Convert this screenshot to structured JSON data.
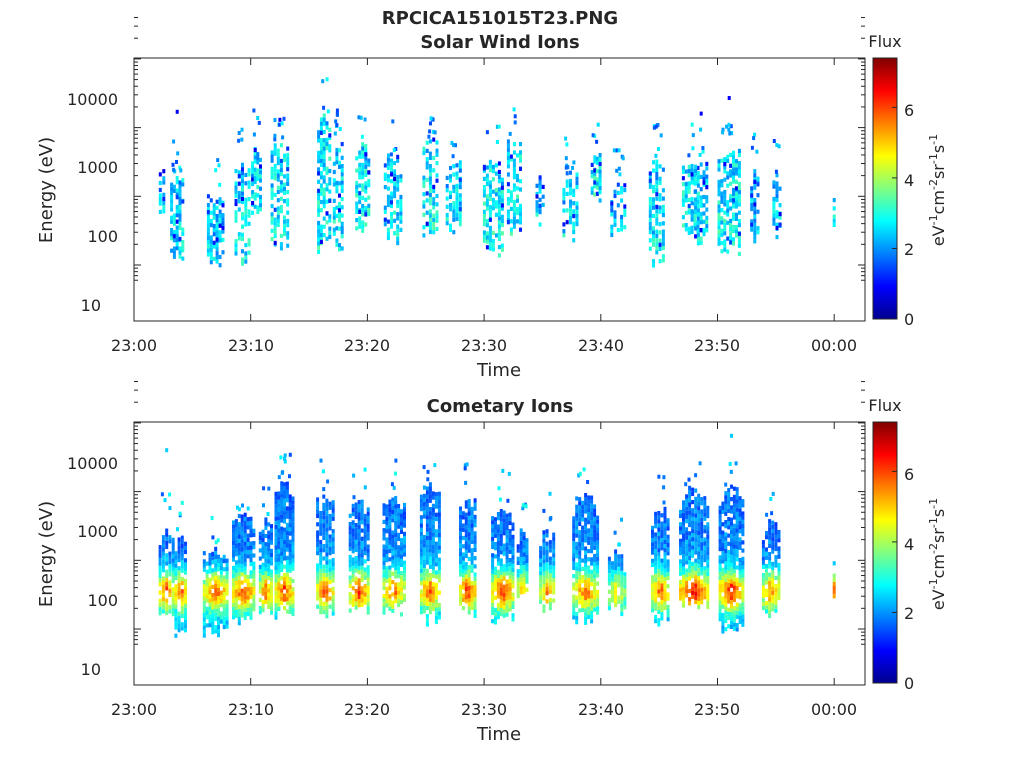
{
  "figure_title": "RPCICA151015T23.PNG",
  "colors": {
    "colormap": [
      "#00008f",
      "#0000ff",
      "#0080ff",
      "#00ffff",
      "#80ff80",
      "#ffff00",
      "#ff8000",
      "#ff0000",
      "#800000"
    ],
    "axis": "#262626",
    "background": "#ffffff"
  },
  "chart_data": [
    {
      "type": "heatmap",
      "title": "Solar Wind Ions",
      "xlabel": "Time",
      "ylabel": "Energy (eV)",
      "xticks": [
        "23:00",
        "23:10",
        "23:20",
        "23:30",
        "23:40",
        "23:50",
        "00:00"
      ],
      "xlim_minutes": [
        0,
        62
      ],
      "yticks": [
        "10",
        "100",
        "1000",
        "10000"
      ],
      "y_scale": "log",
      "ylim": [
        6,
        45000
      ],
      "colorbar": {
        "title": "Flux",
        "label": "eV-1cm-2sr-1s-1",
        "ticks": [
          "0",
          "2",
          "4",
          "6"
        ],
        "range": [
          0,
          7.4
        ]
      },
      "bursts": [
        {
          "t": 2.4,
          "w": 0.6,
          "lo": 60,
          "hi": 280,
          "peak": 2.6,
          "spike": 0,
          "tail": 0
        },
        {
          "t": 3.7,
          "w": 1.2,
          "lo": 14,
          "hi": 200,
          "peak": 2.7,
          "spike": 1700,
          "tail": 2
        },
        {
          "t": 7.0,
          "w": 1.5,
          "lo": 13,
          "hi": 110,
          "peak": 2.6,
          "spike": 0,
          "tail": 1
        },
        {
          "t": 9.3,
          "w": 1.4,
          "lo": 13,
          "hi": 300,
          "peak": 2.8,
          "spike": 0,
          "tail": 1
        },
        {
          "t": 10.5,
          "w": 0.9,
          "lo": 60,
          "hi": 600,
          "peak": 2.8,
          "spike": 0,
          "tail": 1
        },
        {
          "t": 12.5,
          "w": 1.6,
          "lo": 20,
          "hi": 600,
          "peak": 2.9,
          "spike": 1300,
          "tail": 2
        },
        {
          "t": 16.3,
          "w": 1.2,
          "lo": 20,
          "hi": 1700,
          "peak": 2.9,
          "spike": 0,
          "tail": 1
        },
        {
          "t": 17.5,
          "w": 0.9,
          "lo": 20,
          "hi": 600,
          "peak": 2.8,
          "spike": 0,
          "tail": 2
        },
        {
          "t": 19.6,
          "w": 1.3,
          "lo": 40,
          "hi": 600,
          "peak": 2.9,
          "spike": 0,
          "tail": 1
        },
        {
          "t": 22.2,
          "w": 1.6,
          "lo": 25,
          "hi": 400,
          "peak": 2.8,
          "spike": 0,
          "tail": 1
        },
        {
          "t": 25.4,
          "w": 1.4,
          "lo": 30,
          "hi": 700,
          "peak": 2.9,
          "spike": 0,
          "tail": 2
        },
        {
          "t": 27.4,
          "w": 1.4,
          "lo": 30,
          "hi": 350,
          "peak": 2.7,
          "spike": 0,
          "tail": 1
        },
        {
          "t": 30.8,
          "w": 1.8,
          "lo": 18,
          "hi": 350,
          "peak": 3.0,
          "spike": 0,
          "tail": 1
        },
        {
          "t": 32.6,
          "w": 1.3,
          "lo": 30,
          "hi": 700,
          "peak": 2.9,
          "spike": 0,
          "tail": 1
        },
        {
          "t": 34.8,
          "w": 0.8,
          "lo": 50,
          "hi": 200,
          "peak": 2.6,
          "spike": 0,
          "tail": 0
        },
        {
          "t": 37.4,
          "w": 1.4,
          "lo": 30,
          "hi": 250,
          "peak": 2.7,
          "spike": 0,
          "tail": 2
        },
        {
          "t": 39.6,
          "w": 0.9,
          "lo": 100,
          "hi": 500,
          "peak": 3.0,
          "spike": 0,
          "tail": 1
        },
        {
          "t": 41.5,
          "w": 1.4,
          "lo": 30,
          "hi": 150,
          "peak": 2.5,
          "spike": 0,
          "tail": 2
        },
        {
          "t": 44.8,
          "w": 1.4,
          "lo": 13,
          "hi": 350,
          "peak": 2.8,
          "spike": 0,
          "tail": 2
        },
        {
          "t": 47.7,
          "w": 1.5,
          "lo": 30,
          "hi": 350,
          "peak": 2.9,
          "spike": 0,
          "tail": 1
        },
        {
          "t": 48.6,
          "w": 1.2,
          "lo": 25,
          "hi": 300,
          "peak": 2.8,
          "spike": 1600,
          "tail": 1
        },
        {
          "t": 51.0,
          "w": 2.0,
          "lo": 18,
          "hi": 550,
          "peak": 2.9,
          "spike": 2700,
          "tail": 2
        },
        {
          "t": 53.2,
          "w": 0.8,
          "lo": 25,
          "hi": 250,
          "peak": 2.6,
          "spike": 0,
          "tail": 1
        },
        {
          "t": 55.1,
          "w": 0.8,
          "lo": 30,
          "hi": 220,
          "peak": 2.6,
          "spike": 0,
          "tail": 1
        },
        {
          "t": 60.0,
          "w": 0.15,
          "lo": 35,
          "hi": 100,
          "peak": 3.2,
          "spike": 0,
          "tail": 0
        }
      ]
    },
    {
      "type": "heatmap",
      "title": "Cometary Ions",
      "xlabel": "Time",
      "ylabel": "Energy (eV)",
      "xticks": [
        "23:00",
        "23:10",
        "23:20",
        "23:30",
        "23:40",
        "23:50",
        "00:00"
      ],
      "xlim_minutes": [
        0,
        62
      ],
      "yticks": [
        "10",
        "100",
        "1000",
        "10000"
      ],
      "y_scale": "log",
      "ylim": [
        6,
        45000
      ],
      "colorbar": {
        "title": "Flux",
        "label": "eV-1cm-2sr-1s-1",
        "ticks": [
          "0",
          "2",
          "4",
          "6"
        ],
        "range": [
          0,
          7.4
        ]
      },
      "bursts": [
        {
          "t": 2.8,
          "w": 1.4,
          "lo": 18,
          "hi": 300,
          "peak": 6.0,
          "spike": 4000,
          "tail": 1
        },
        {
          "t": 4.0,
          "w": 1.1,
          "lo": 10,
          "hi": 250,
          "peak": 6.4,
          "spike": 0,
          "tail": 1
        },
        {
          "t": 7.0,
          "w": 2.2,
          "lo": 10,
          "hi": 150,
          "peak": 6.3,
          "spike": 0,
          "tail": 1
        },
        {
          "t": 9.4,
          "w": 2.0,
          "lo": 15,
          "hi": 500,
          "peak": 6.3,
          "spike": 0,
          "tail": 1
        },
        {
          "t": 11.3,
          "w": 1.2,
          "lo": 20,
          "hi": 400,
          "peak": 5.8,
          "spike": 0,
          "tail": 1
        },
        {
          "t": 12.9,
          "w": 1.7,
          "lo": 18,
          "hi": 1500,
          "peak": 6.2,
          "spike": 3000,
          "tail": 2
        },
        {
          "t": 16.4,
          "w": 1.6,
          "lo": 18,
          "hi": 900,
          "peak": 6.1,
          "spike": 0,
          "tail": 1
        },
        {
          "t": 19.3,
          "w": 1.8,
          "lo": 20,
          "hi": 800,
          "peak": 6.2,
          "spike": 0,
          "tail": 1
        },
        {
          "t": 22.3,
          "w": 2.0,
          "lo": 20,
          "hi": 900,
          "peak": 5.8,
          "spike": 0,
          "tail": 1
        },
        {
          "t": 25.4,
          "w": 1.8,
          "lo": 15,
          "hi": 1300,
          "peak": 6.0,
          "spike": 0,
          "tail": 1
        },
        {
          "t": 28.6,
          "w": 1.5,
          "lo": 20,
          "hi": 800,
          "peak": 6.4,
          "spike": 0,
          "tail": 1
        },
        {
          "t": 31.6,
          "w": 2.0,
          "lo": 15,
          "hi": 600,
          "peak": 6.4,
          "spike": 2000,
          "tail": 1
        },
        {
          "t": 33.3,
          "w": 1.0,
          "lo": 40,
          "hi": 300,
          "peak": 5.2,
          "spike": 0,
          "tail": 1
        },
        {
          "t": 35.4,
          "w": 1.4,
          "lo": 20,
          "hi": 300,
          "peak": 5.5,
          "spike": 0,
          "tail": 1
        },
        {
          "t": 38.7,
          "w": 2.3,
          "lo": 15,
          "hi": 900,
          "peak": 5.8,
          "spike": 0,
          "tail": 1
        },
        {
          "t": 41.4,
          "w": 1.6,
          "lo": 20,
          "hi": 150,
          "peak": 5.0,
          "spike": 0,
          "tail": 1
        },
        {
          "t": 45.1,
          "w": 1.6,
          "lo": 15,
          "hi": 600,
          "peak": 6.0,
          "spike": 0,
          "tail": 1
        },
        {
          "t": 48.0,
          "w": 2.6,
          "lo": 25,
          "hi": 1200,
          "peak": 6.6,
          "spike": 0,
          "tail": 1
        },
        {
          "t": 51.2,
          "w": 2.2,
          "lo": 12,
          "hi": 1200,
          "peak": 6.5,
          "spike": 6500,
          "tail": 1
        },
        {
          "t": 54.6,
          "w": 1.6,
          "lo": 20,
          "hi": 400,
          "peak": 5.8,
          "spike": 0,
          "tail": 1
        },
        {
          "t": 60.0,
          "w": 0.15,
          "lo": 35,
          "hi": 100,
          "peak": 5.8,
          "spike": 0,
          "tail": 0
        }
      ]
    }
  ]
}
